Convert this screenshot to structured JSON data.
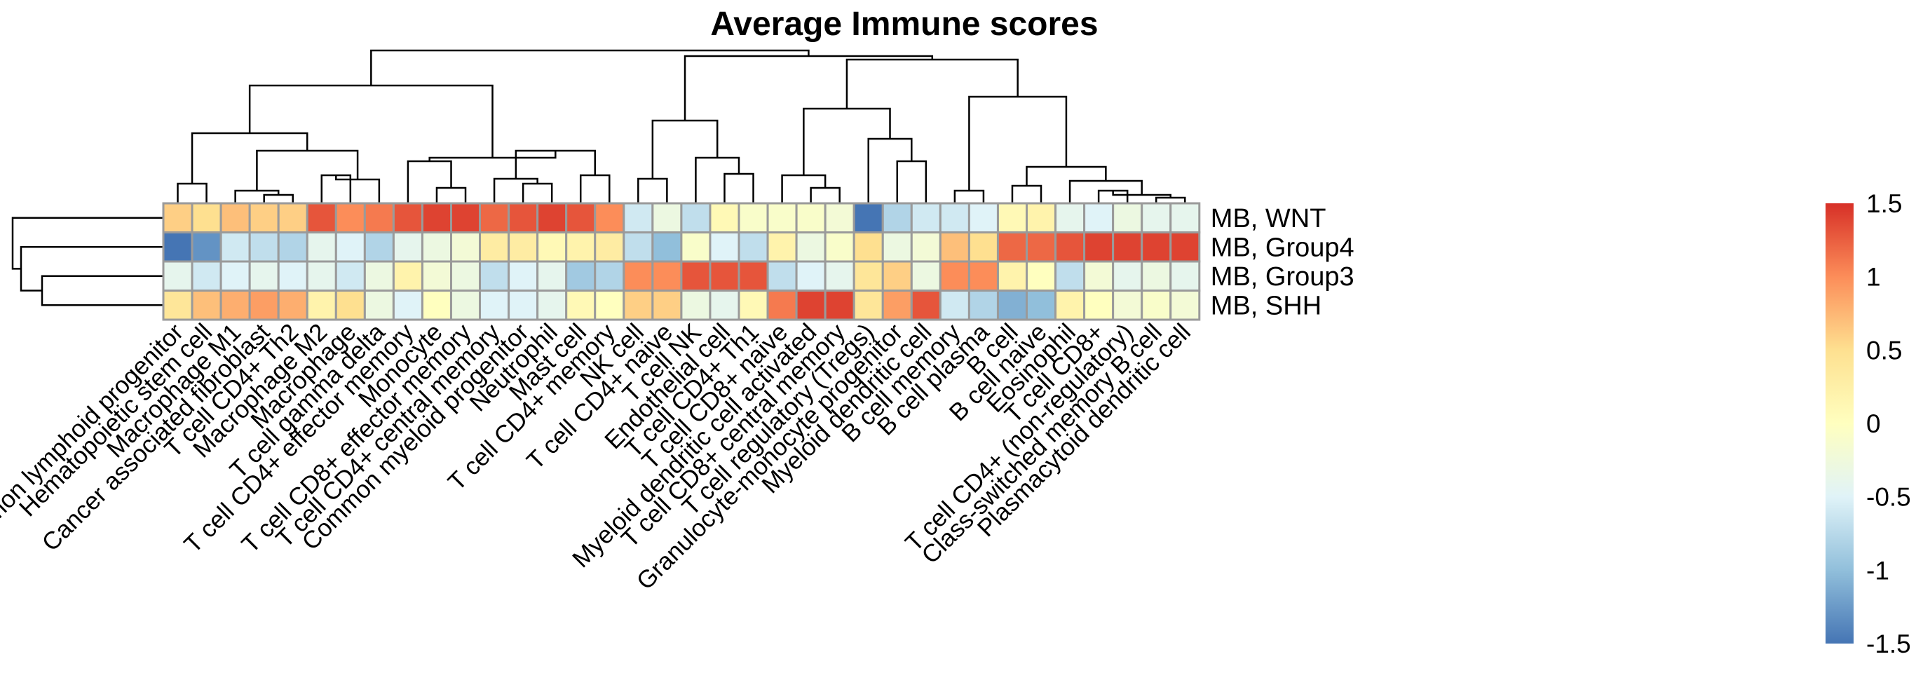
{
  "chart_data": {
    "type": "heatmap",
    "title": "Average Immune scores",
    "columns": [
      "Common lymphoid progenitor",
      "Hematopoietic stem cell",
      "Macrophage M1",
      "Cancer associated fibroblast",
      "T cell CD4+ Th2",
      "Macrophage M2",
      "Macrophage",
      "T cell gamma delta",
      "T cell CD4+ effector memory",
      "Monocyte",
      "T cell CD8+ effector memory",
      "T cell CD4+ central memory",
      "Common myeloid progenitor",
      "Neutrophil",
      "Mast cell",
      "T cell CD4+ memory",
      "NK cell",
      "T cell CD4+ naive",
      "T cell NK",
      "Endothelial cell",
      "T cell CD4+ Th1",
      "T cell CD8+ naive",
      "Myeloid dendritic cell activated",
      "T cell CD8+ central memory",
      "T cell regulatory (Tregs)",
      "Granulocyte-monocyte progenitor",
      "Myeloid dendritic cell",
      "B cell memory",
      "B cell plasma",
      "B cell",
      "B cell naive",
      "Eosinophil",
      "T cell CD8+",
      "T cell CD4+ (non-regulatory)",
      "Class-switched memory B cell",
      "Plasmacytoid dendritic cell"
    ],
    "rows": [
      "MB, WNT",
      "MB, Group4",
      "MB, Group3",
      "MB, SHH"
    ],
    "values": [
      [
        0.6,
        0.5,
        0.7,
        0.6,
        0.6,
        1.3,
        1.0,
        1.1,
        1.3,
        1.4,
        1.4,
        1.2,
        1.3,
        1.4,
        1.3,
        1.0,
        -0.6,
        -0.3,
        -0.7,
        0.1,
        -0.1,
        -0.1,
        -0.1,
        -0.2,
        -1.5,
        -0.8,
        -0.6,
        -0.6,
        -0.5,
        0.1,
        0.2,
        -0.4,
        -0.5,
        -0.3,
        -0.4,
        -0.4
      ],
      [
        -1.5,
        -1.3,
        -0.6,
        -0.7,
        -0.8,
        -0.4,
        -0.5,
        -0.8,
        -0.4,
        -0.3,
        -0.2,
        0.3,
        0.3,
        0.1,
        0.2,
        0.3,
        -0.7,
        -1.0,
        -0.1,
        -0.5,
        -0.7,
        0.2,
        -0.3,
        -0.1,
        0.5,
        -0.3,
        -0.2,
        0.7,
        0.5,
        1.2,
        1.2,
        1.3,
        1.4,
        1.4,
        1.4,
        1.4
      ],
      [
        -0.4,
        -0.6,
        -0.5,
        -0.4,
        -0.5,
        -0.4,
        -0.6,
        -0.3,
        0.2,
        -0.2,
        -0.3,
        -0.7,
        -0.5,
        -0.4,
        -0.9,
        -0.8,
        1.0,
        1.0,
        1.3,
        1.3,
        1.3,
        -0.7,
        -0.5,
        -0.4,
        0.4,
        0.6,
        -0.3,
        1.0,
        1.0,
        0.2,
        0.0,
        -0.7,
        -0.2,
        -0.4,
        -0.3,
        -0.4
      ],
      [
        0.4,
        0.7,
        0.8,
        0.9,
        0.8,
        0.2,
        0.5,
        -0.3,
        -0.5,
        0.0,
        -0.3,
        -0.5,
        -0.5,
        -0.4,
        0.1,
        0.0,
        0.6,
        0.6,
        -0.3,
        -0.4,
        0.1,
        1.1,
        1.4,
        1.4,
        0.4,
        0.9,
        1.3,
        -0.6,
        -0.8,
        -1.1,
        -1.0,
        0.2,
        0.0,
        -0.2,
        -0.1,
        -0.2
      ]
    ],
    "colorbar": {
      "range": [
        -1.5,
        1.5
      ],
      "ticks": [
        "1.5",
        "1",
        "0.5",
        "0",
        "-0.5",
        "-1",
        "-1.5"
      ],
      "colors": [
        "#4575b4",
        "#91bfdb",
        "#e0f3f8",
        "#ffffbf",
        "#fee090",
        "#fc8d59",
        "#d73027"
      ]
    }
  }
}
